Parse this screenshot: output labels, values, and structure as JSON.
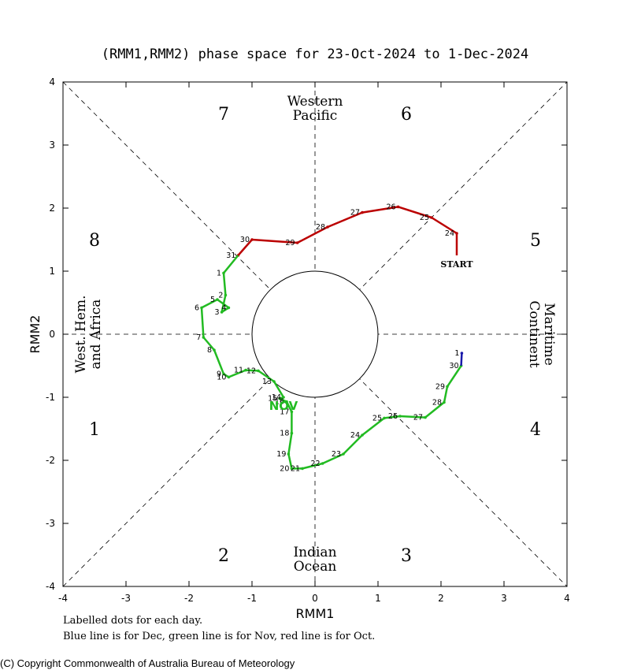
{
  "chart_data": {
    "type": "line",
    "title": "(RMM1,RMM2) phase space for 23-Oct-2024 to  1-Dec-2024",
    "xlabel": "RMM1",
    "ylabel": "RMM2",
    "xlim": [
      -4,
      4
    ],
    "ylim": [
      -4,
      4
    ],
    "x_ticks": [
      "-4",
      "-3",
      "-2",
      "-1",
      "0",
      "1",
      "2",
      "3",
      "4"
    ],
    "y_ticks": [
      "-4",
      "-3",
      "-2",
      "-1",
      "0",
      "1",
      "2",
      "3",
      "4"
    ],
    "phases": [
      "1",
      "2",
      "3",
      "4",
      "5",
      "6",
      "7",
      "8"
    ],
    "regions": {
      "top": [
        "Western",
        "Pacific"
      ],
      "bottom": [
        "Indian",
        "Ocean"
      ],
      "left": [
        "West. Hem.",
        "and Africa"
      ],
      "right": [
        "Maritime",
        "Continent"
      ]
    },
    "start_label": "START",
    "month_label": "NOV",
    "series": [
      {
        "month": "Oct",
        "color": "#bb0000",
        "points": [
          {
            "x": 2.25,
            "y": 1.25,
            "label": ""
          },
          {
            "x": 2.25,
            "y": 1.6,
            "label": "24"
          },
          {
            "x": 1.85,
            "y": 1.85,
            "label": "25"
          },
          {
            "x": 1.32,
            "y": 2.02,
            "label": "26"
          },
          {
            "x": 0.75,
            "y": 1.93,
            "label": "27"
          },
          {
            "x": 0.2,
            "y": 1.7,
            "label": "28"
          },
          {
            "x": -0.28,
            "y": 1.45,
            "label": "29"
          },
          {
            "x": -1.0,
            "y": 1.5,
            "label": "30"
          },
          {
            "x": -1.22,
            "y": 1.25,
            "label": "31"
          }
        ]
      },
      {
        "month": "Nov",
        "color": "#22bb22",
        "points": [
          {
            "x": -1.22,
            "y": 1.25,
            "label": ""
          },
          {
            "x": -1.45,
            "y": 0.97,
            "label": "1"
          },
          {
            "x": -1.42,
            "y": 0.62,
            "label": "2"
          },
          {
            "x": -1.48,
            "y": 0.35,
            "label": "3"
          },
          {
            "x": -1.37,
            "y": 0.42,
            "label": "4"
          },
          {
            "x": -1.55,
            "y": 0.55,
            "label": "5"
          },
          {
            "x": -1.8,
            "y": 0.42,
            "label": "6"
          },
          {
            "x": -1.77,
            "y": -0.05,
            "label": "7"
          },
          {
            "x": -1.6,
            "y": -0.25,
            "label": "8"
          },
          {
            "x": -1.45,
            "y": -0.63,
            "label": "9"
          },
          {
            "x": -1.37,
            "y": -0.68,
            "label": "10"
          },
          {
            "x": -1.1,
            "y": -0.57,
            "label": "11"
          },
          {
            "x": -0.9,
            "y": -0.58,
            "label": "12"
          },
          {
            "x": -0.65,
            "y": -0.75,
            "label": "13"
          },
          {
            "x": -0.5,
            "y": -1.0,
            "label": "14"
          },
          {
            "x": -0.56,
            "y": -1.02,
            "label": "15"
          },
          {
            "x": -0.45,
            "y": -1.07,
            "label": "16"
          },
          {
            "x": -0.37,
            "y": -1.23,
            "label": "17"
          },
          {
            "x": -0.37,
            "y": -1.57,
            "label": "18"
          },
          {
            "x": -0.42,
            "y": -1.9,
            "label": "19"
          },
          {
            "x": -0.37,
            "y": -2.13,
            "label": "20"
          },
          {
            "x": -0.2,
            "y": -2.13,
            "label": "21"
          },
          {
            "x": 0.12,
            "y": -2.05,
            "label": "22"
          },
          {
            "x": 0.45,
            "y": -1.9,
            "label": "23"
          },
          {
            "x": 0.75,
            "y": -1.6,
            "label": "24"
          },
          {
            "x": 1.1,
            "y": -1.33,
            "label": "25"
          },
          {
            "x": 1.35,
            "y": -1.3,
            "label": "26"
          },
          {
            "x": 1.75,
            "y": -1.32,
            "label": "27"
          },
          {
            "x": 2.05,
            "y": -1.08,
            "label": "28"
          },
          {
            "x": 2.1,
            "y": -0.83,
            "label": "29"
          },
          {
            "x": 2.32,
            "y": -0.5,
            "label": "30"
          }
        ]
      },
      {
        "month": "Dec",
        "color": "#1a1aaa",
        "points": [
          {
            "x": 2.32,
            "y": -0.5,
            "label": ""
          },
          {
            "x": 2.33,
            "y": -0.3,
            "label": "1"
          }
        ]
      }
    ]
  },
  "notes": {
    "line1": "Labelled dots for each day.",
    "line2": "Blue line is for Dec, green line is for Nov, red line is for Oct."
  },
  "copyright": "(C) Copyright Commonwealth of Australia Bureau of Meteorology"
}
